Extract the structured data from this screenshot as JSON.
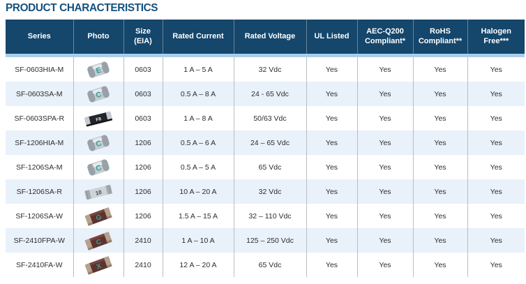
{
  "page_title": "PRODUCT CHARACTERISTICS",
  "colors": {
    "title_text": "#14517f",
    "header_bg": "#15466b",
    "header_divider": "#6b8398",
    "stripe": "#a9ceec",
    "zebra_row": "#e9f1fa",
    "body_divider": "#b9bdc1",
    "body_text": "#2d2d2d",
    "photo_teal_mark": "#2ba09c"
  },
  "table": {
    "columns": [
      "Series",
      "Photo",
      "Size (EIA)",
      "Rated Current",
      "Rated Voltage",
      "UL Listed",
      "AEC-Q200 Compliant*",
      "RoHS Compliant**",
      "Halogen Free***"
    ],
    "rows": [
      {
        "series": "SF-0603HIA-M",
        "photo": {
          "style": "melf",
          "mark": "E"
        },
        "size": "0603",
        "current": "1 A – 5 A",
        "voltage": "32 Vdc",
        "ul": "Yes",
        "aec": "Yes",
        "rohs": "Yes",
        "halogen": "Yes"
      },
      {
        "series": "SF-0603SA-M",
        "photo": {
          "style": "melf",
          "mark": "C"
        },
        "size": "0603",
        "current": "0.5 A – 8 A",
        "voltage": "24 - 65 Vdc",
        "ul": "Yes",
        "aec": "Yes",
        "rohs": "Yes",
        "halogen": "Yes"
      },
      {
        "series": "SF-0603SPA-R",
        "photo": {
          "style": "chip-black",
          "mark": "F8"
        },
        "size": "0603",
        "current": "1 A – 8 A",
        "voltage": "50/63 Vdc",
        "ul": "Yes",
        "aec": "Yes",
        "rohs": "Yes",
        "halogen": "Yes"
      },
      {
        "series": "SF-1206HIA-M",
        "photo": {
          "style": "melf",
          "mark": "C"
        },
        "size": "1206",
        "current": "0.5 A – 6 A",
        "voltage": "24 – 65 Vdc",
        "ul": "Yes",
        "aec": "Yes",
        "rohs": "Yes",
        "halogen": "Yes"
      },
      {
        "series": "SF-1206SA-M",
        "photo": {
          "style": "melf",
          "mark": "C"
        },
        "size": "1206",
        "current": "0.5 A – 5 A",
        "voltage": "65 Vdc",
        "ul": "Yes",
        "aec": "Yes",
        "rohs": "Yes",
        "halogen": "Yes"
      },
      {
        "series": "SF-1206SA-R",
        "photo": {
          "style": "chip-silver",
          "mark": "10"
        },
        "size": "1206",
        "current": "10 A – 20 A",
        "voltage": "32 Vdc",
        "ul": "Yes",
        "aec": "Yes",
        "rohs": "Yes",
        "halogen": "Yes"
      },
      {
        "series": "SF-1206SA-W",
        "photo": {
          "style": "chip-brown",
          "mark": "G"
        },
        "size": "1206",
        "current": "1.5 A – 15 A",
        "voltage": "32 – 110 Vdc",
        "ul": "Yes",
        "aec": "Yes",
        "rohs": "Yes",
        "halogen": "Yes"
      },
      {
        "series": "SF-2410FPA-W",
        "photo": {
          "style": "chip-brown",
          "mark": "C"
        },
        "size": "2410",
        "current": "1 A – 10 A",
        "voltage": "125 – 250 Vdc",
        "ul": "Yes",
        "aec": "Yes",
        "rohs": "Yes",
        "halogen": "Yes"
      },
      {
        "series": "SF-2410FA-W",
        "photo": {
          "style": "chip-brown",
          "mark": "X"
        },
        "size": "2410",
        "current": "12 A – 20 A",
        "voltage": "65 Vdc",
        "ul": "Yes",
        "aec": "Yes",
        "rohs": "Yes",
        "halogen": "Yes"
      }
    ]
  }
}
